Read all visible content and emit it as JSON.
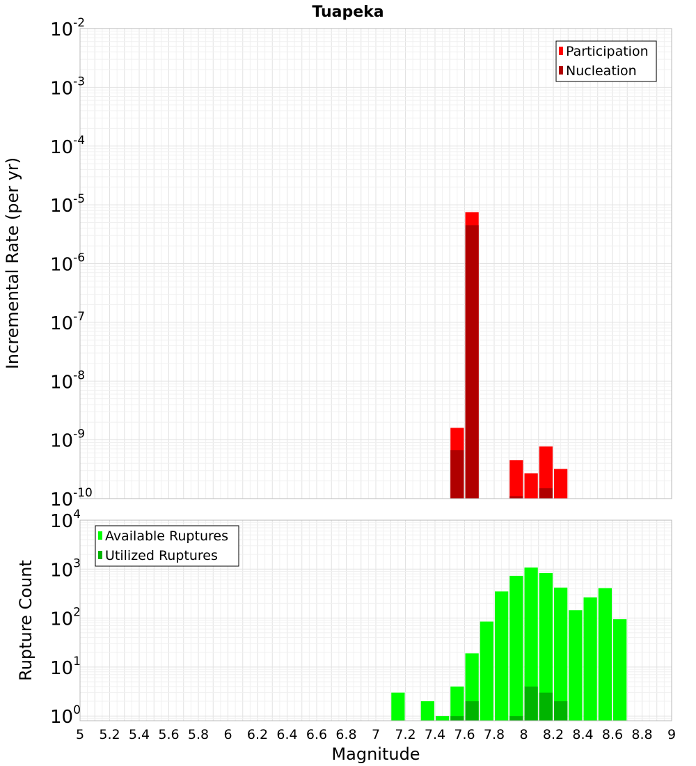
{
  "chart_data": {
    "title": "Tuapeka",
    "xlabel": "Magnitude",
    "x_ticks": [
      "5",
      "5.2",
      "5.4",
      "5.6",
      "5.8",
      "6",
      "6.2",
      "6.4",
      "6.6",
      "6.8",
      "7",
      "7.2",
      "7.4",
      "7.6",
      "7.8",
      "8",
      "8.2",
      "8.4",
      "8.6",
      "8.8",
      "9"
    ],
    "xlim": [
      5,
      9
    ],
    "bin_width": 0.1,
    "grid": true,
    "panels": [
      {
        "type": "bar",
        "ylabel": "Incremental Rate (per yr)",
        "yscale": "log",
        "ylim": [
          1e-10,
          0.01
        ],
        "y_tick_exponents": [
          "-10",
          "-9",
          "-8",
          "-7",
          "-6",
          "-5",
          "-4",
          "-3",
          "-2"
        ],
        "legend_position": "top-right",
        "series": [
          {
            "name": "Participation",
            "color": "#ff0000",
            "x": [
              7.55,
              7.65,
              7.95,
              8.05,
              8.15,
              8.25
            ],
            "values": [
              1.6e-09,
              7.5e-06,
              4.5e-10,
              2.7e-10,
              7.7e-10,
              3.2e-10
            ]
          },
          {
            "name": "Nucleation",
            "color": "#b00000",
            "x": [
              7.55,
              7.65,
              7.95,
              8.15
            ],
            "values": [
              6.7e-10,
              4.5e-06,
              1.1e-10,
              1.5e-10
            ]
          }
        ]
      },
      {
        "type": "bar",
        "ylabel": "Rupture Count",
        "yscale": "log",
        "ylim": [
          0.8,
          10000
        ],
        "y_tick_exponents": [
          "0",
          "1",
          "2",
          "3",
          "4"
        ],
        "legend_position": "top-left",
        "series": [
          {
            "name": "Available Ruptures",
            "color": "#00ff00",
            "x": [
              7.15,
              7.35,
              7.45,
              7.55,
              7.65,
              7.75,
              7.85,
              7.95,
              8.05,
              8.15,
              8.25,
              8.35,
              8.45,
              8.55,
              8.65
            ],
            "values": [
              3,
              2,
              1,
              4,
              19,
              85,
              350,
              730,
              1080,
              830,
              420,
              145,
              265,
              410,
              95
            ]
          },
          {
            "name": "Utilized Ruptures",
            "color": "#00b400",
            "x": [
              7.55,
              7.65,
              7.95,
              8.05,
              8.15,
              8.25
            ],
            "values": [
              1,
              2,
              1,
              4,
              3,
              2
            ]
          }
        ]
      }
    ]
  }
}
